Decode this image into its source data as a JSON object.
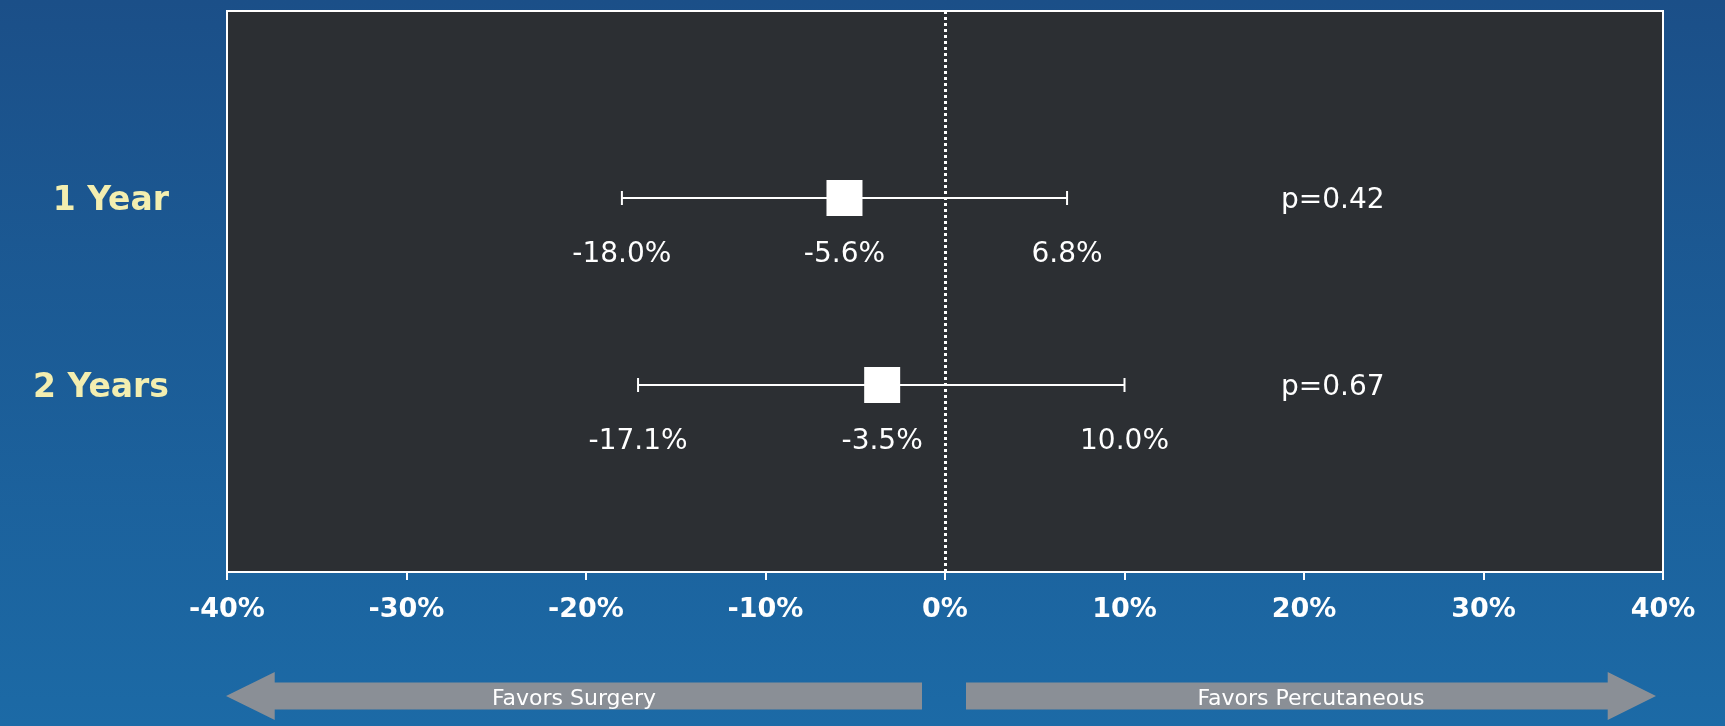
{
  "chart_data": {
    "type": "scatter",
    "orientation": "horizontal",
    "categories": [
      "1 Year",
      "2 Years"
    ],
    "values": [
      -5.6,
      -3.5
    ],
    "errors": [
      [
        -18.0,
        6.8
      ],
      [
        -17.1,
        10.0
      ]
    ],
    "value_labels": [
      "-5.6%",
      "-3.5%"
    ],
    "color": "#ffffff",
    "marker": "square",
    "xlim": [
      -40,
      40
    ],
    "xticks": [
      {
        "value": -40,
        "label": "-40%"
      },
      {
        "value": -30,
        "label": "-30%"
      },
      {
        "value": -20,
        "label": "-20%"
      },
      {
        "value": -10,
        "label": "-10%"
      },
      {
        "value": 0,
        "label": "0%"
      },
      {
        "value": 10,
        "label": "10%"
      },
      {
        "value": 20,
        "label": "20%"
      },
      {
        "value": 30,
        "label": "30%"
      },
      {
        "value": 40,
        "label": "40%"
      }
    ],
    "ref_lines": [
      {
        "axis": "x",
        "value": 0,
        "color": "#ffffff",
        "line_style": "dotted"
      }
    ],
    "annotations": [
      "-18.0%",
      "6.8%",
      "-17.1%",
      "10.0%",
      "p=0.42",
      "p=0.67",
      "Favors Surgery",
      "Favors Percutaneous"
    ],
    "grid": false
  }
}
